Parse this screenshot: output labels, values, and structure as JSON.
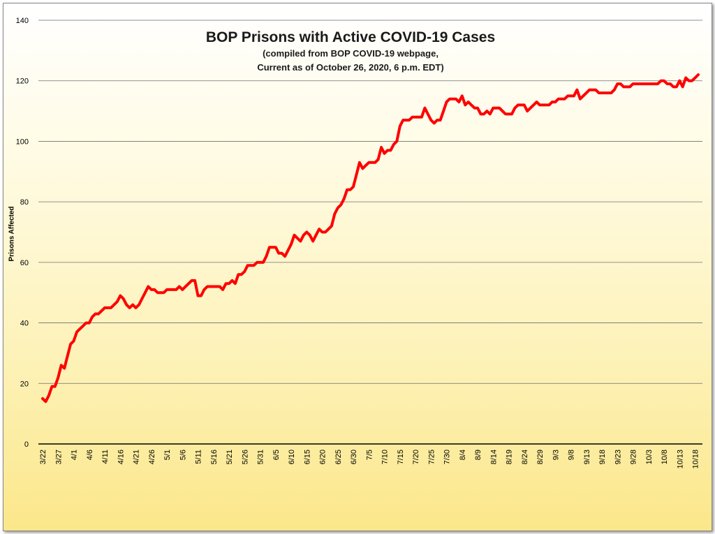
{
  "chart_data": {
    "type": "line",
    "title": "BOP Prisons with Active COVID-19 Cases",
    "subtitle_lines": [
      "(compiled from BOP COVID-19 webpage,",
      "Current as of October 26, 2020, 6 p.m. EDT)"
    ],
    "xlabel": "",
    "ylabel": "Prisons Affected",
    "ylim": [
      0,
      140
    ],
    "yticks": [
      0,
      20,
      40,
      60,
      80,
      100,
      120,
      140
    ],
    "grid": true,
    "x_tick_labels": [
      "3/22",
      "3/27",
      "4/1",
      "4/6",
      "4/11",
      "4/16",
      "4/21",
      "4/26",
      "5/1",
      "5/6",
      "5/11",
      "5/16",
      "5/21",
      "5/26",
      "5/31",
      "6/5",
      "6/10",
      "6/15",
      "6/20",
      "6/25",
      "6/30",
      "7/5",
      "7/10",
      "7/15",
      "7/20",
      "7/25",
      "7/30",
      "8/4",
      "8/9",
      "8/14",
      "8/19",
      "8/24",
      "8/29",
      "9/3",
      "9/8",
      "9/13",
      "9/18",
      "9/23",
      "9/28",
      "10/3",
      "10/8",
      "10/13",
      "10/18"
    ],
    "series": [
      {
        "color": "#ff0000",
        "values": [
          [
            0,
            15
          ],
          [
            1,
            14
          ],
          [
            2,
            16
          ],
          [
            3,
            19
          ],
          [
            4,
            19
          ],
          [
            5,
            22
          ],
          [
            6,
            26
          ],
          [
            7,
            25
          ],
          [
            8,
            29
          ],
          [
            9,
            33
          ],
          [
            10,
            34
          ],
          [
            11,
            37
          ],
          [
            12,
            38
          ],
          [
            13,
            39
          ],
          [
            14,
            40
          ],
          [
            15,
            40
          ],
          [
            16,
            42
          ],
          [
            17,
            43
          ],
          [
            18,
            43
          ],
          [
            19,
            44
          ],
          [
            20,
            45
          ],
          [
            21,
            45
          ],
          [
            22,
            45
          ],
          [
            23,
            46
          ],
          [
            24,
            47
          ],
          [
            25,
            49
          ],
          [
            26,
            48
          ],
          [
            27,
            46
          ],
          [
            28,
            45
          ],
          [
            29,
            46
          ],
          [
            30,
            45
          ],
          [
            31,
            46
          ],
          [
            32,
            48
          ],
          [
            33,
            50
          ],
          [
            34,
            52
          ],
          [
            35,
            51
          ],
          [
            36,
            51
          ],
          [
            37,
            50
          ],
          [
            38,
            50
          ],
          [
            39,
            50
          ],
          [
            40,
            51
          ],
          [
            41,
            51
          ],
          [
            42,
            51
          ],
          [
            43,
            51
          ],
          [
            44,
            52
          ],
          [
            45,
            51
          ],
          [
            46,
            52
          ],
          [
            47,
            53
          ],
          [
            48,
            54
          ],
          [
            49,
            54
          ],
          [
            50,
            49
          ],
          [
            51,
            49
          ],
          [
            52,
            51
          ],
          [
            53,
            52
          ],
          [
            54,
            52
          ],
          [
            55,
            52
          ],
          [
            56,
            52
          ],
          [
            57,
            52
          ],
          [
            58,
            51
          ],
          [
            59,
            53
          ],
          [
            60,
            53
          ],
          [
            61,
            54
          ],
          [
            62,
            53
          ],
          [
            63,
            56
          ],
          [
            64,
            56
          ],
          [
            65,
            57
          ],
          [
            66,
            59
          ],
          [
            67,
            59
          ],
          [
            68,
            59
          ],
          [
            69,
            60
          ],
          [
            70,
            60
          ],
          [
            71,
            60
          ],
          [
            72,
            62
          ],
          [
            73,
            65
          ],
          [
            74,
            65
          ],
          [
            75,
            65
          ],
          [
            76,
            63
          ],
          [
            77,
            63
          ],
          [
            78,
            62
          ],
          [
            79,
            64
          ],
          [
            80,
            66
          ],
          [
            81,
            69
          ],
          [
            82,
            68
          ],
          [
            83,
            67
          ],
          [
            84,
            69
          ],
          [
            85,
            70
          ],
          [
            86,
            69
          ],
          [
            87,
            67
          ],
          [
            88,
            69
          ],
          [
            89,
            71
          ],
          [
            90,
            70
          ],
          [
            91,
            70
          ],
          [
            92,
            71
          ],
          [
            93,
            72
          ],
          [
            94,
            76
          ],
          [
            95,
            78
          ],
          [
            96,
            79
          ],
          [
            97,
            81
          ],
          [
            98,
            84
          ],
          [
            99,
            84
          ],
          [
            100,
            85
          ],
          [
            101,
            89
          ],
          [
            102,
            93
          ],
          [
            103,
            91
          ],
          [
            104,
            92
          ],
          [
            105,
            93
          ],
          [
            106,
            93
          ],
          [
            107,
            93
          ],
          [
            108,
            94
          ],
          [
            109,
            98
          ],
          [
            110,
            96
          ],
          [
            111,
            97
          ],
          [
            112,
            97
          ],
          [
            113,
            99
          ],
          [
            114,
            100
          ],
          [
            115,
            105
          ],
          [
            116,
            107
          ],
          [
            117,
            107
          ],
          [
            118,
            107
          ],
          [
            119,
            108
          ],
          [
            120,
            108
          ],
          [
            121,
            108
          ],
          [
            122,
            108
          ],
          [
            123,
            111
          ],
          [
            124,
            109
          ],
          [
            125,
            107
          ],
          [
            126,
            106
          ],
          [
            127,
            107
          ],
          [
            128,
            107
          ],
          [
            129,
            110
          ],
          [
            130,
            113
          ],
          [
            131,
            114
          ],
          [
            132,
            114
          ],
          [
            133,
            114
          ],
          [
            134,
            113
          ],
          [
            135,
            115
          ],
          [
            136,
            112
          ],
          [
            137,
            113
          ],
          [
            138,
            112
          ],
          [
            139,
            111
          ],
          [
            140,
            111
          ],
          [
            141,
            109
          ],
          [
            142,
            109
          ],
          [
            143,
            110
          ],
          [
            144,
            109
          ],
          [
            145,
            111
          ],
          [
            146,
            111
          ],
          [
            147,
            111
          ],
          [
            148,
            110
          ],
          [
            149,
            109
          ],
          [
            150,
            109
          ],
          [
            151,
            109
          ],
          [
            152,
            111
          ],
          [
            153,
            112
          ],
          [
            154,
            112
          ],
          [
            155,
            112
          ],
          [
            156,
            110
          ],
          [
            157,
            111
          ],
          [
            158,
            112
          ],
          [
            159,
            113
          ],
          [
            160,
            112
          ],
          [
            161,
            112
          ],
          [
            162,
            112
          ],
          [
            163,
            112
          ],
          [
            164,
            113
          ],
          [
            165,
            113
          ],
          [
            166,
            114
          ],
          [
            167,
            114
          ],
          [
            168,
            114
          ],
          [
            169,
            115
          ],
          [
            170,
            115
          ],
          [
            171,
            115
          ],
          [
            172,
            117
          ],
          [
            173,
            114
          ],
          [
            174,
            115
          ],
          [
            175,
            116
          ],
          [
            176,
            117
          ],
          [
            177,
            117
          ],
          [
            178,
            117
          ],
          [
            179,
            116
          ],
          [
            180,
            116
          ],
          [
            181,
            116
          ],
          [
            182,
            116
          ],
          [
            183,
            116
          ],
          [
            184,
            117
          ],
          [
            185,
            119
          ],
          [
            186,
            119
          ],
          [
            187,
            118
          ],
          [
            188,
            118
          ],
          [
            189,
            118
          ],
          [
            190,
            119
          ],
          [
            191,
            119
          ],
          [
            192,
            119
          ],
          [
            193,
            119
          ],
          [
            194,
            119
          ],
          [
            195,
            119
          ],
          [
            196,
            119
          ],
          [
            197,
            119
          ],
          [
            198,
            119
          ],
          [
            199,
            120
          ],
          [
            200,
            120
          ],
          [
            201,
            119
          ],
          [
            202,
            119
          ],
          [
            203,
            118
          ],
          [
            204,
            118
          ],
          [
            205,
            120
          ],
          [
            206,
            118
          ],
          [
            207,
            121
          ],
          [
            208,
            120
          ],
          [
            209,
            120
          ],
          [
            210,
            121
          ],
          [
            211,
            122
          ]
        ]
      }
    ]
  }
}
